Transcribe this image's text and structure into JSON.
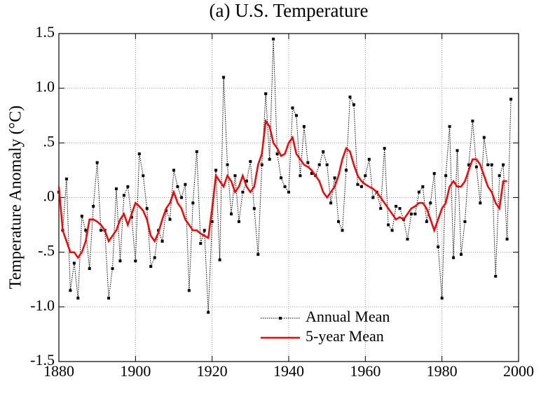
{
  "chart_data": {
    "type": "line",
    "title": "(a)  U.S. Temperature",
    "y_label": "Temperature Anomaly (°C)",
    "x": [
      1880,
      1881,
      1882,
      1883,
      1884,
      1885,
      1886,
      1887,
      1888,
      1889,
      1890,
      1891,
      1892,
      1893,
      1894,
      1895,
      1896,
      1897,
      1898,
      1899,
      1900,
      1901,
      1902,
      1903,
      1904,
      1905,
      1906,
      1907,
      1908,
      1909,
      1910,
      1911,
      1912,
      1913,
      1914,
      1915,
      1916,
      1917,
      1918,
      1919,
      1920,
      1921,
      1922,
      1923,
      1924,
      1925,
      1926,
      1927,
      1928,
      1929,
      1930,
      1931,
      1932,
      1933,
      1934,
      1935,
      1936,
      1937,
      1938,
      1939,
      1940,
      1941,
      1942,
      1943,
      1944,
      1945,
      1946,
      1947,
      1948,
      1949,
      1950,
      1951,
      1952,
      1953,
      1954,
      1955,
      1956,
      1957,
      1958,
      1959,
      1960,
      1961,
      1962,
      1963,
      1964,
      1965,
      1966,
      1967,
      1968,
      1969,
      1970,
      1971,
      1972,
      1973,
      1974,
      1975,
      1976,
      1977,
      1978,
      1979,
      1980,
      1981,
      1982,
      1983,
      1984,
      1985,
      1986,
      1987,
      1988,
      1989,
      1990,
      1991,
      1992,
      1993,
      1994,
      1995,
      1996,
      1997,
      1998
    ],
    "series": [
      {
        "name": "Annual Mean",
        "color": "#000000",
        "values": [
          0.05,
          -0.3,
          0.17,
          -0.85,
          -0.6,
          -0.92,
          -0.17,
          -0.3,
          -0.65,
          -0.08,
          0.32,
          -0.3,
          -0.3,
          -0.92,
          -0.65,
          0.08,
          -0.58,
          0.02,
          0.1,
          -0.18,
          -0.58,
          0.4,
          0.2,
          -0.1,
          -0.63,
          -0.55,
          -0.3,
          -0.4,
          -0.12,
          -0.2,
          0.25,
          0.1,
          0.0,
          0.12,
          -0.85,
          -0.05,
          0.42,
          -0.42,
          -0.3,
          -1.05,
          -0.22,
          0.25,
          -0.57,
          1.1,
          0.3,
          -0.15,
          0.2,
          -0.22,
          0.05,
          0.15,
          0.33,
          -0.1,
          -0.52,
          0.3,
          0.95,
          0.35,
          1.45,
          0.4,
          0.18,
          0.1,
          0.05,
          0.82,
          0.75,
          0.2,
          0.65,
          0.32,
          0.22,
          0.2,
          0.3,
          0.42,
          0.3,
          -0.05,
          0.18,
          -0.22,
          -0.3,
          0.25,
          0.92,
          0.85,
          0.12,
          0.1,
          0.2,
          0.35,
          0.0,
          0.05,
          -0.1,
          0.45,
          -0.25,
          -0.3,
          -0.08,
          -0.1,
          -0.2,
          -0.38,
          -0.15,
          -0.15,
          0.05,
          0.1,
          -0.22,
          -0.05,
          0.22,
          -0.45,
          -0.92,
          0.2,
          0.65,
          -0.55,
          0.43,
          -0.52,
          -0.22,
          0.3,
          0.7,
          0.28,
          -0.05,
          0.55,
          0.3,
          0.3,
          -0.72,
          0.2,
          0.3,
          -0.38,
          0.9
        ]
      },
      {
        "name": "5-year Mean",
        "color": "#ff0000",
        "values": [
          0.1,
          -0.3,
          -0.4,
          -0.5,
          -0.5,
          -0.55,
          -0.5,
          -0.4,
          -0.2,
          -0.2,
          -0.22,
          -0.25,
          -0.3,
          -0.4,
          -0.35,
          -0.3,
          -0.2,
          -0.15,
          -0.25,
          -0.15,
          -0.05,
          -0.08,
          -0.12,
          -0.2,
          -0.35,
          -0.4,
          -0.32,
          -0.2,
          -0.1,
          -0.05,
          0.05,
          -0.05,
          -0.1,
          -0.2,
          -0.25,
          -0.3,
          -0.3,
          -0.33,
          -0.35,
          -0.37,
          -0.1,
          0.2,
          0.15,
          0.1,
          0.2,
          0.15,
          0.05,
          0.1,
          0.2,
          0.1,
          0.05,
          0.1,
          0.3,
          0.4,
          0.7,
          0.65,
          0.5,
          0.45,
          0.38,
          0.4,
          0.5,
          0.55,
          0.4,
          0.35,
          0.3,
          0.28,
          0.25,
          0.2,
          0.15,
          0.05,
          0.0,
          0.05,
          0.1,
          0.2,
          0.35,
          0.45,
          0.42,
          0.3,
          0.2,
          0.15,
          0.12,
          0.1,
          0.08,
          0.05,
          0.0,
          -0.05,
          -0.1,
          -0.15,
          -0.2,
          -0.18,
          -0.2,
          -0.15,
          -0.1,
          -0.08,
          -0.05,
          -0.05,
          -0.1,
          -0.2,
          -0.3,
          -0.2,
          -0.1,
          -0.05,
          0.1,
          0.15,
          0.1,
          0.1,
          0.15,
          0.25,
          0.35,
          0.35,
          0.3,
          0.2,
          0.1,
          0.05,
          -0.05,
          -0.1,
          0.15,
          0.15,
          null
        ]
      }
    ],
    "xlim": [
      1880,
      2000
    ],
    "xticks": [
      1880,
      1900,
      1920,
      1940,
      1960,
      1980,
      2000
    ],
    "ylim": [
      -1.5,
      1.5
    ],
    "yticks": [
      {
        "value": -1.5,
        "label": "-1.5"
      },
      {
        "value": -1,
        "label": "-1.0"
      },
      {
        "value": -0.5,
        "label": "-.5"
      },
      {
        "value": 0,
        "label": ".0"
      },
      {
        "value": 0.5,
        "label": ".5"
      },
      {
        "value": 1,
        "label": "1.0"
      },
      1.5
    ],
    "grid": true
  }
}
